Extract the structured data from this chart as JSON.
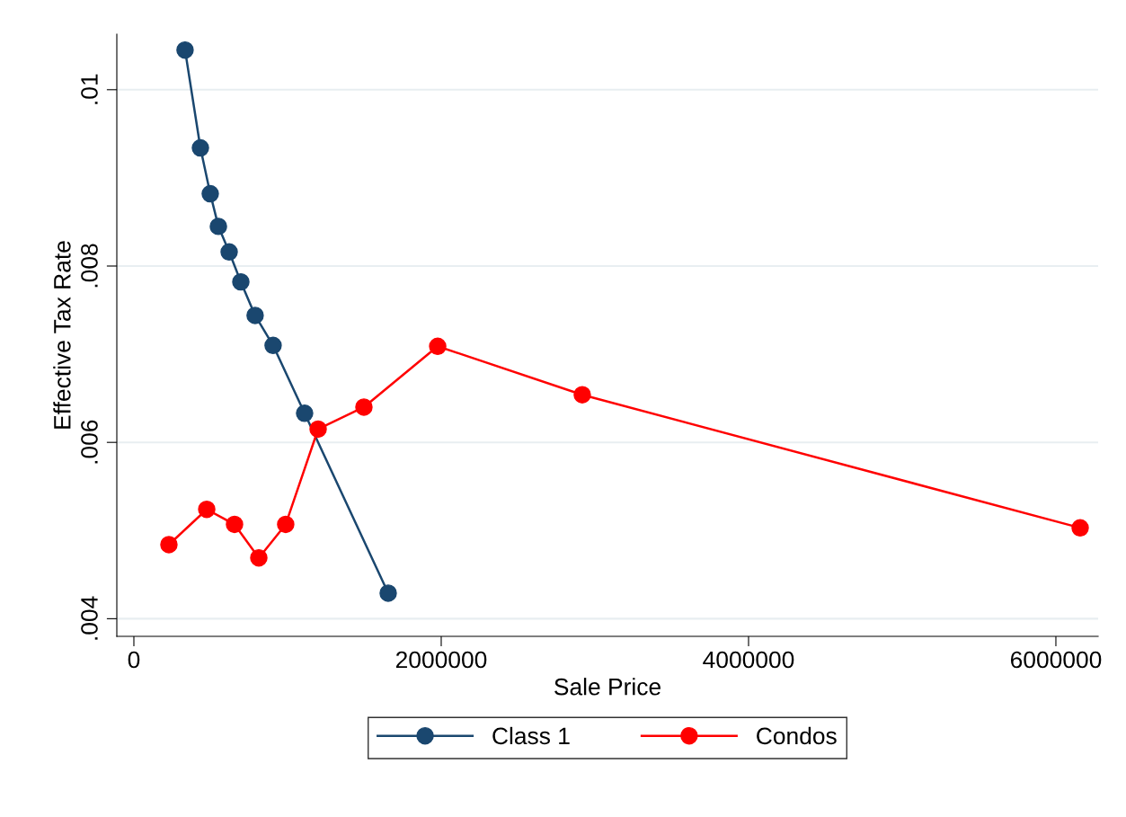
{
  "chart_data": {
    "type": "line",
    "xlabel": "Sale Price",
    "ylabel": "Effective Tax Rate",
    "xlim": [
      -111000,
      6275000
    ],
    "xticks": [
      0,
      2000000,
      4000000,
      6000000
    ],
    "ylim": [
      0.0038,
      0.01063
    ],
    "yticks": [
      {
        "value": 0.004,
        "label": ".004"
      },
      {
        "value": 0.006,
        "label": ".006"
      },
      {
        "value": 0.008,
        "label": ".008"
      },
      {
        "value": 0.01,
        "label": ".01"
      }
    ],
    "grid": "y",
    "legend": "bottom",
    "marker": "circle",
    "line_style": "solid",
    "series": [
      {
        "name": "Class 1",
        "color": "#1a476f",
        "x": [
          333000,
          433000,
          497000,
          550000,
          620000,
          696000,
          789000,
          906000,
          1111000,
          1655000
        ],
        "values": [
          0.01045,
          0.00934,
          0.00882,
          0.00845,
          0.00816,
          0.00782,
          0.00744,
          0.0071,
          0.00633,
          0.00429
        ]
      },
      {
        "name": "Condos",
        "color": "#ff0000",
        "x": [
          228000,
          474000,
          655000,
          813000,
          988000,
          1199000,
          1497000,
          1977000,
          2918000,
          6158000
        ],
        "values": [
          0.00484,
          0.00524,
          0.00507,
          0.00469,
          0.00507,
          0.00615,
          0.0064,
          0.00709,
          0.00654,
          0.00503
        ]
      }
    ]
  }
}
